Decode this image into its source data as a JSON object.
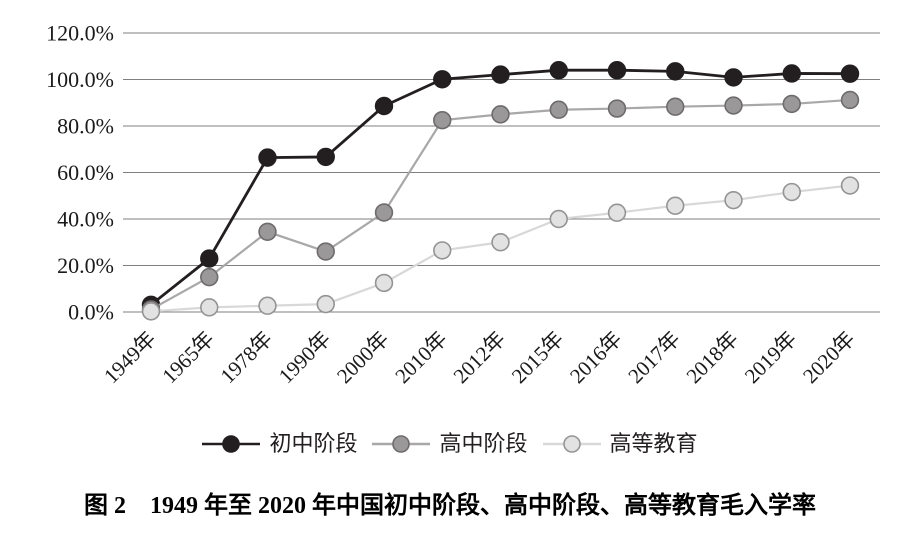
{
  "chart_data": {
    "type": "line",
    "title": "图 2　1949 年至 2020 年中国初中阶段、高中阶段、高等教育毛入学率",
    "categories": [
      "1949年",
      "1965年",
      "1978年",
      "1990年",
      "2000年",
      "2010年",
      "2012年",
      "2015年",
      "2016年",
      "2017年",
      "2018年",
      "2019年",
      "2020年"
    ],
    "series": [
      {
        "key": "junior-secondary-stage",
        "name": "初中阶段",
        "values": [
          3.1,
          23.0,
          66.4,
          66.7,
          88.6,
          100.1,
          102.1,
          104.0,
          104.0,
          103.5,
          100.9,
          102.6,
          102.5
        ],
        "line_color": "#231f20",
        "marker_fill": "#231f20",
        "marker_stroke": "#231f20"
      },
      {
        "key": "senior-secondary-stage",
        "name": "高中阶段",
        "values": [
          1.1,
          15.0,
          34.5,
          26.0,
          42.8,
          82.5,
          85.0,
          87.0,
          87.5,
          88.3,
          88.8,
          89.5,
          91.2
        ],
        "line_color": "#a9a7a8",
        "marker_fill": "#9a9899",
        "marker_stroke": "#6e6b6c"
      },
      {
        "key": "higher-education",
        "name": "高等教育",
        "values": [
          0.26,
          2.0,
          2.7,
          3.4,
          12.5,
          26.5,
          30.0,
          40.0,
          42.7,
          45.7,
          48.1,
          51.6,
          54.4
        ],
        "line_color": "#d9d8d8",
        "marker_fill": "#e3e2e2",
        "marker_stroke": "#959394"
      }
    ],
    "ylabel": "",
    "xlabel": "",
    "ylim": [
      0,
      120
    ],
    "ytick_step": 20,
    "ytick_labels": [
      "0.0%",
      "20.0%",
      "40.0%",
      "60.0%",
      "80.0%",
      "100.0%",
      "120.0%"
    ],
    "grid": "horizontal",
    "gridline_color": "#7f7f7f",
    "text_color": "#1a1a1a",
    "legend_position": "bottom",
    "legend_labels": [
      "初中阶段",
      "高中阶段",
      "高等教育"
    ]
  }
}
